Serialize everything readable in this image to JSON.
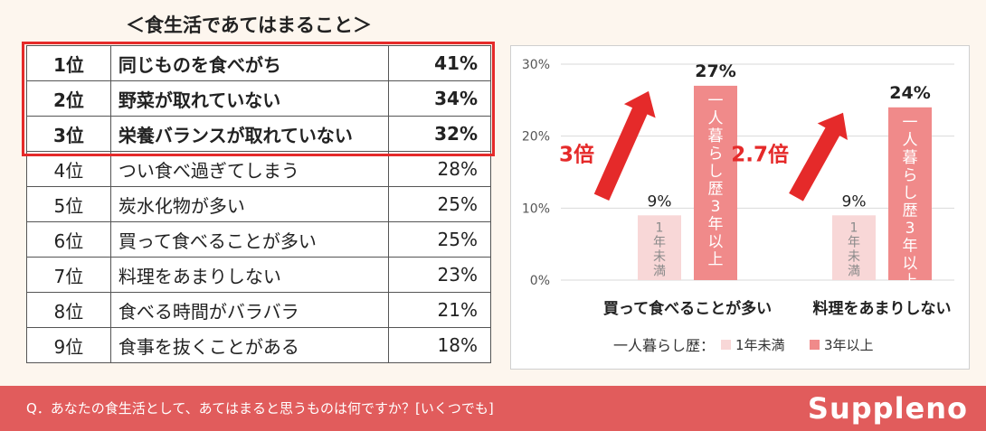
{
  "table": {
    "title": "＜食生活であてはまること＞",
    "rows": [
      {
        "rank": "1位",
        "item": "同じものを食べがち",
        "pct": "41%"
      },
      {
        "rank": "2位",
        "item": "野菜が取れていない",
        "pct": "34%"
      },
      {
        "rank": "3位",
        "item": "栄養バランスが取れていない",
        "pct": "32%"
      },
      {
        "rank": "4位",
        "item": "つい食べ過ぎてしまう",
        "pct": "28%"
      },
      {
        "rank": "5位",
        "item": "炭水化物が多い",
        "pct": "25%"
      },
      {
        "rank": "6位",
        "item": "買って食べることが多い",
        "pct": "25%"
      },
      {
        "rank": "7位",
        "item": "料理をあまりしない",
        "pct": "23%"
      },
      {
        "rank": "8位",
        "item": "食べる時間がバラバラ",
        "pct": "21%"
      },
      {
        "rank": "9位",
        "item": "食事を抜くことがある",
        "pct": "18%"
      }
    ]
  },
  "chart_data": {
    "type": "bar",
    "categories": [
      "買って食べることが多い",
      "料理をあまりしない"
    ],
    "series": [
      {
        "name": "1年未満",
        "values": [
          9,
          9
        ],
        "data_labels": [
          "9%",
          "9%"
        ],
        "bar_text": "1年未満",
        "color": "#f8d7d7"
      },
      {
        "name": "3年以上",
        "values": [
          27,
          24
        ],
        "data_labels": [
          "27%",
          "24%"
        ],
        "bar_text": "一人暮らし歴3年以上",
        "color": "#f08a8a"
      }
    ],
    "ylim": [
      0,
      30
    ],
    "yticks": [
      0,
      10,
      20,
      30
    ],
    "ytick_labels": [
      "0%",
      "10%",
      "20%",
      "30%"
    ],
    "grid": true,
    "legend_title": "一人暮らし歴：",
    "legend_position": "bottom",
    "annotations": [
      "3倍",
      "2.7倍"
    ],
    "accent_color": "#e52a2a"
  },
  "footer": {
    "question": "Q．あなたの食生活として、あてはまると思うものは何ですか？[いくつでも]",
    "brand": "Suppleno",
    "color": "#e15c5c"
  }
}
